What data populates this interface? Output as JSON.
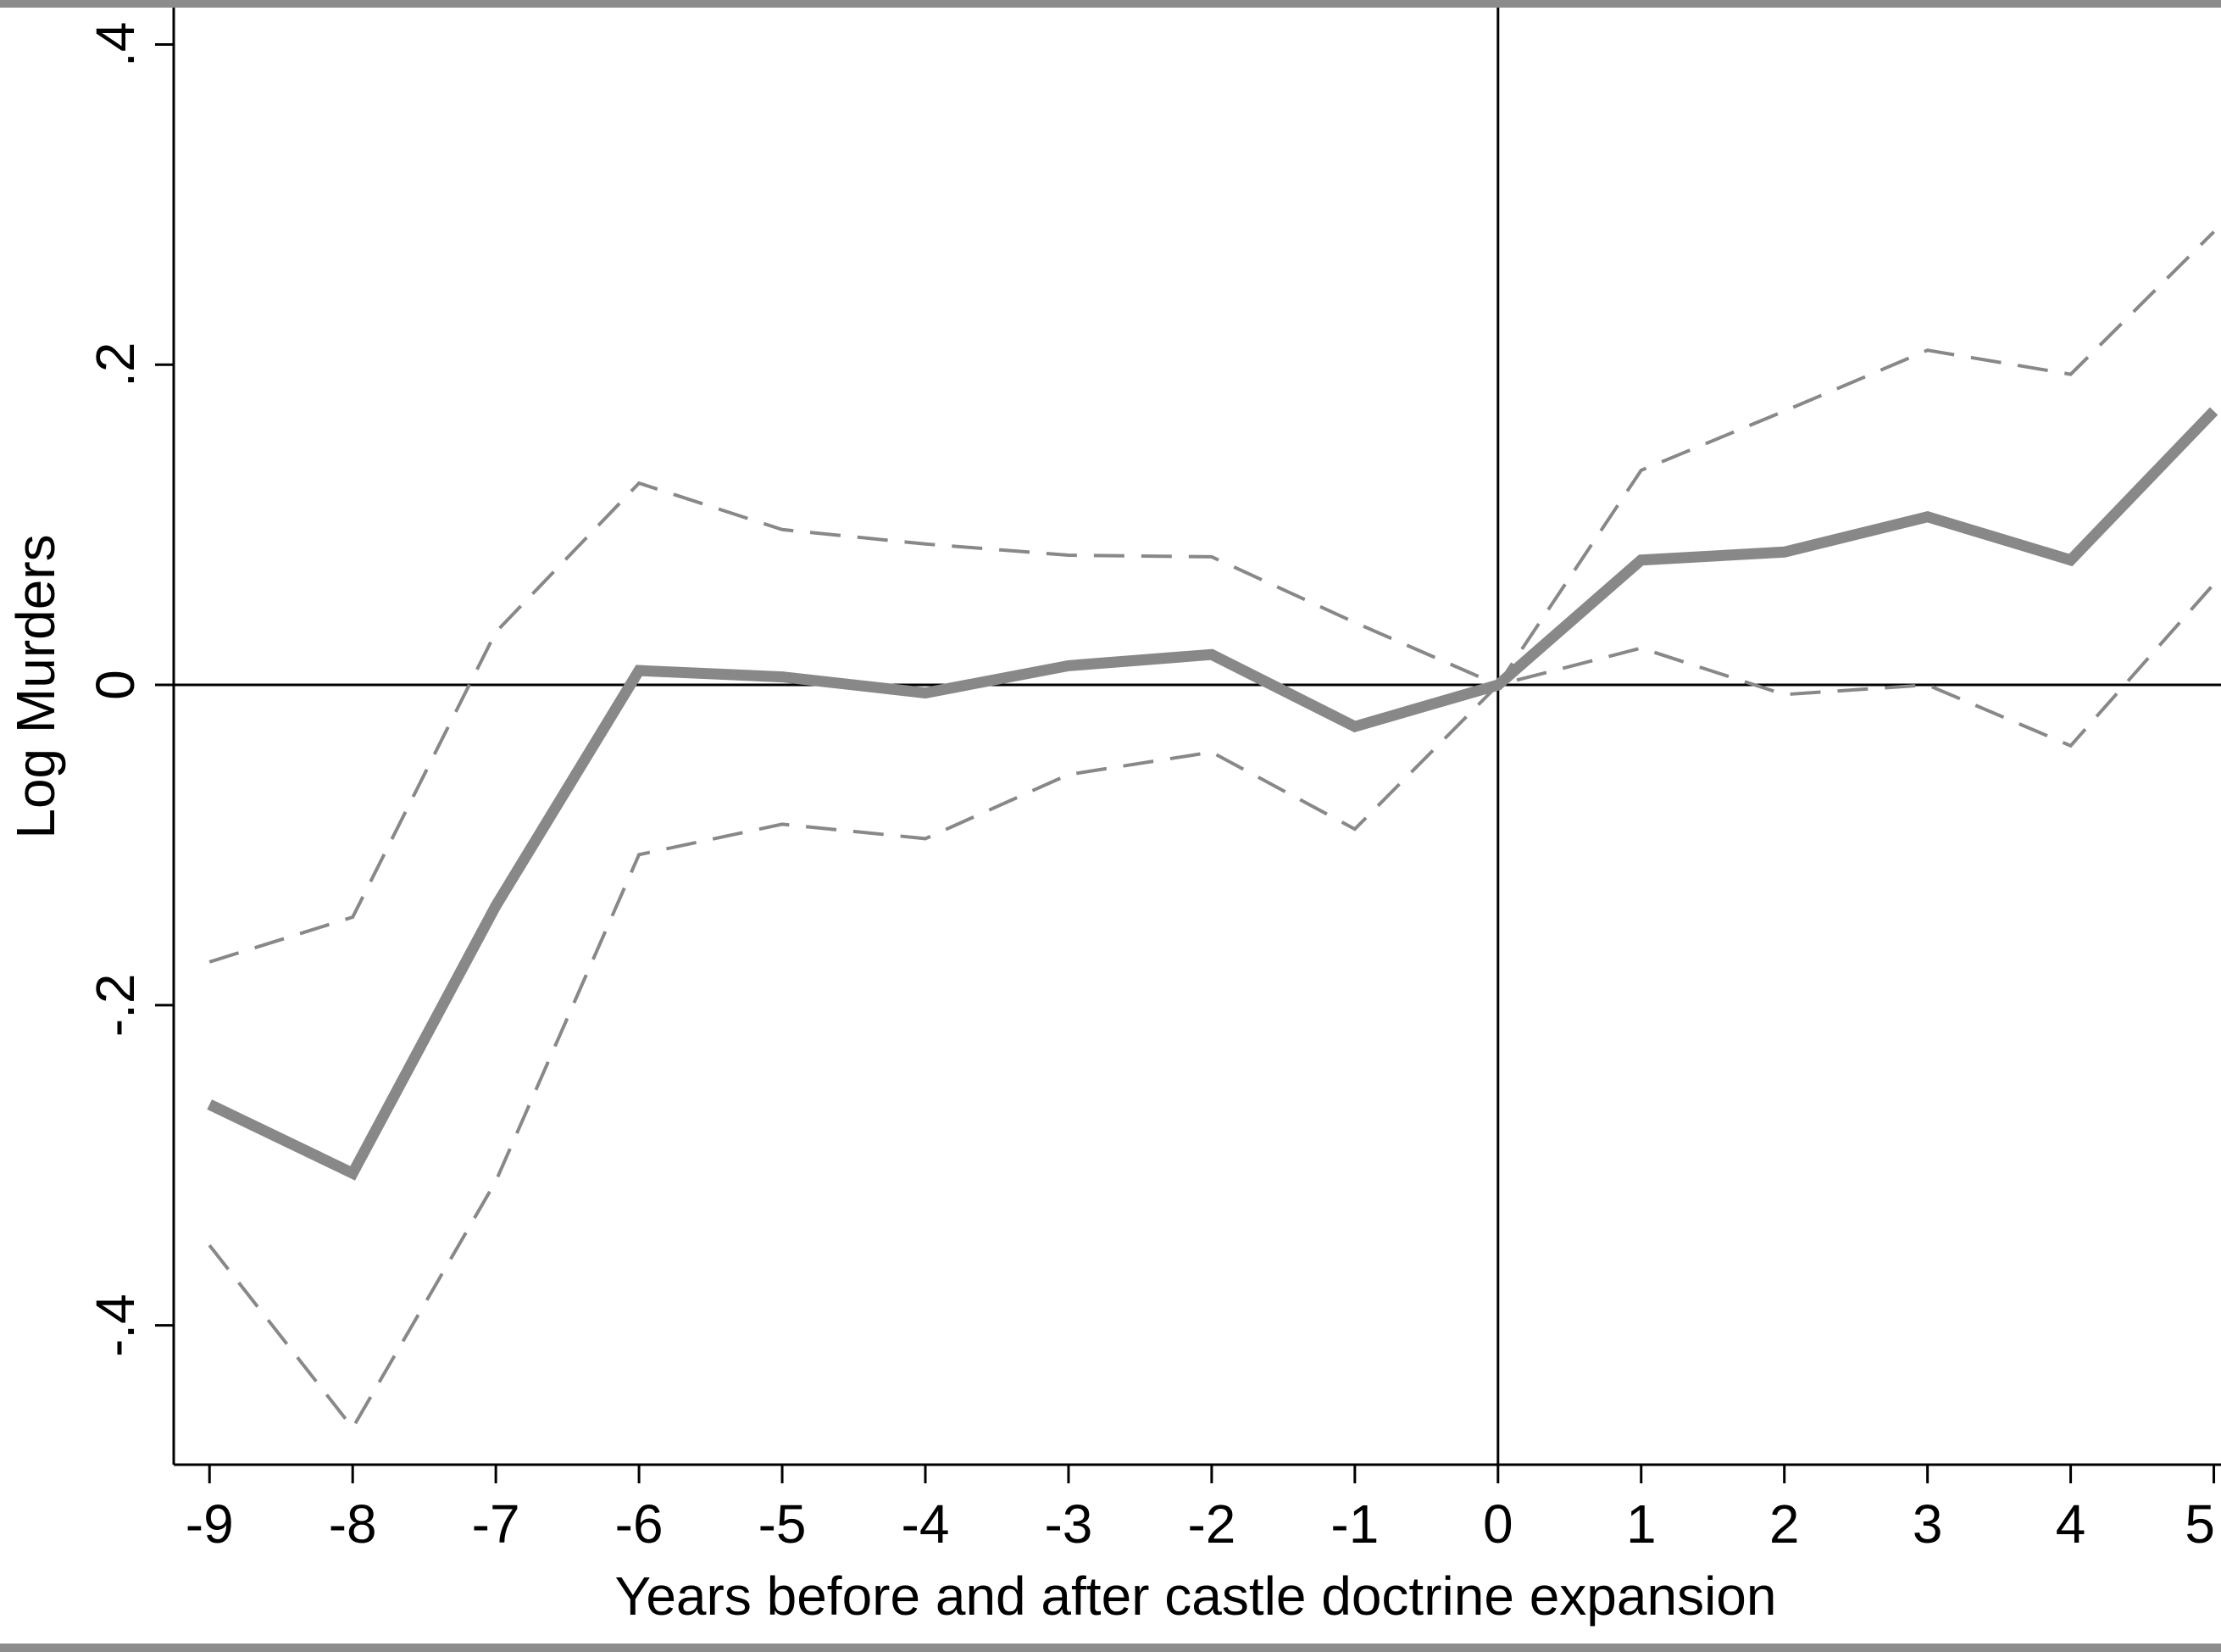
{
  "chart_data": {
    "type": "line",
    "title": "",
    "xlabel": "Years before and after castle doctrine expansion",
    "ylabel": "Log Murders",
    "x": [
      -9,
      -8,
      -7,
      -6,
      -5,
      -4,
      -3,
      -2,
      -1,
      0,
      1,
      2,
      3,
      4,
      5
    ],
    "x_tick_labels": [
      "-9",
      "-8",
      "-7",
      "-6",
      "-5",
      "-4",
      "-3",
      "-2",
      "-1",
      "0",
      "1",
      "2",
      "3",
      "4",
      "5"
    ],
    "y_ticks": [
      -0.4,
      -0.2,
      0,
      0.2,
      0.4
    ],
    "y_tick_labels": [
      "-.4",
      "-.2",
      "0",
      ".2",
      ".4"
    ],
    "xlim": [
      -9.25,
      5.05
    ],
    "ylim": [
      -0.487,
      0.423
    ],
    "reference_lines": {
      "x": 0,
      "y": 0
    },
    "grid": false,
    "legend": "none",
    "series": [
      {
        "role": "estimate",
        "style": "solid",
        "color": "#888888",
        "values": [
          -0.262,
          -0.305,
          -0.138,
          0.009,
          0.005,
          -0.005,
          0.012,
          0.019,
          -0.026,
          0.0,
          0.078,
          0.083,
          0.105,
          0.078,
          0.171
        ]
      },
      {
        "role": "upper-bound",
        "style": "dashed",
        "color": "#888888",
        "values": [
          -0.173,
          -0.145,
          0.033,
          0.126,
          0.097,
          0.088,
          0.081,
          0.08,
          0.039,
          0.0,
          0.134,
          0.171,
          0.209,
          0.194,
          0.283
        ]
      },
      {
        "role": "lower-bound",
        "style": "dashed",
        "color": "#888888",
        "values": [
          -0.35,
          -0.464,
          -0.31,
          -0.106,
          -0.087,
          -0.096,
          -0.056,
          -0.042,
          -0.09,
          0.0,
          0.023,
          -0.006,
          0.0,
          -0.038,
          0.063
        ]
      }
    ]
  }
}
